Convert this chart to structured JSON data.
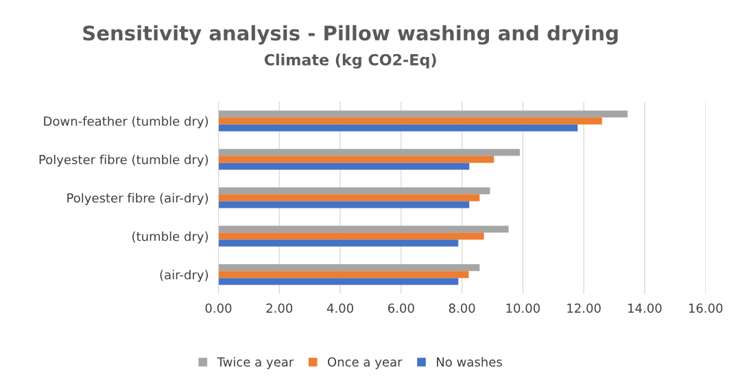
{
  "chart_data": {
    "type": "bar",
    "orientation": "horizontal",
    "title": "Sensitivity analysis - Pillow washing and drying",
    "subtitle": "Climate (kg CO2-Eq)",
    "categories": [
      "Down-feather (tumble dry)",
      "Polyester fibre (tumble dry)",
      "Polyester fibre (air-dry)",
      "(tumble dry)",
      "(air-dry)"
    ],
    "series": [
      {
        "name": "Twice a year",
        "color": "#a5a5a5",
        "values": [
          13.44,
          9.9,
          8.92,
          9.53,
          8.58
        ]
      },
      {
        "name": "Once a year",
        "color": "#ed7d31",
        "values": [
          12.6,
          9.05,
          8.58,
          8.72,
          8.22
        ]
      },
      {
        "name": "No washes",
        "color": "#4472c4",
        "values": [
          11.8,
          8.24,
          8.24,
          7.88,
          7.88
        ]
      }
    ],
    "xlim": [
      0,
      16
    ],
    "xticks": [
      {
        "value": 0,
        "label": "0.00"
      },
      {
        "value": 2,
        "label": "2.00"
      },
      {
        "value": 4,
        "label": "4.00"
      },
      {
        "value": 6,
        "label": "6.00"
      },
      {
        "value": 8,
        "label": "8.00"
      },
      {
        "value": 10,
        "label": "10.00"
      },
      {
        "value": 12,
        "label": "12.00"
      },
      {
        "value": 14,
        "label": "14.00"
      },
      {
        "value": 16,
        "label": "16.00"
      }
    ],
    "grid": "x",
    "legend": "bottom"
  }
}
